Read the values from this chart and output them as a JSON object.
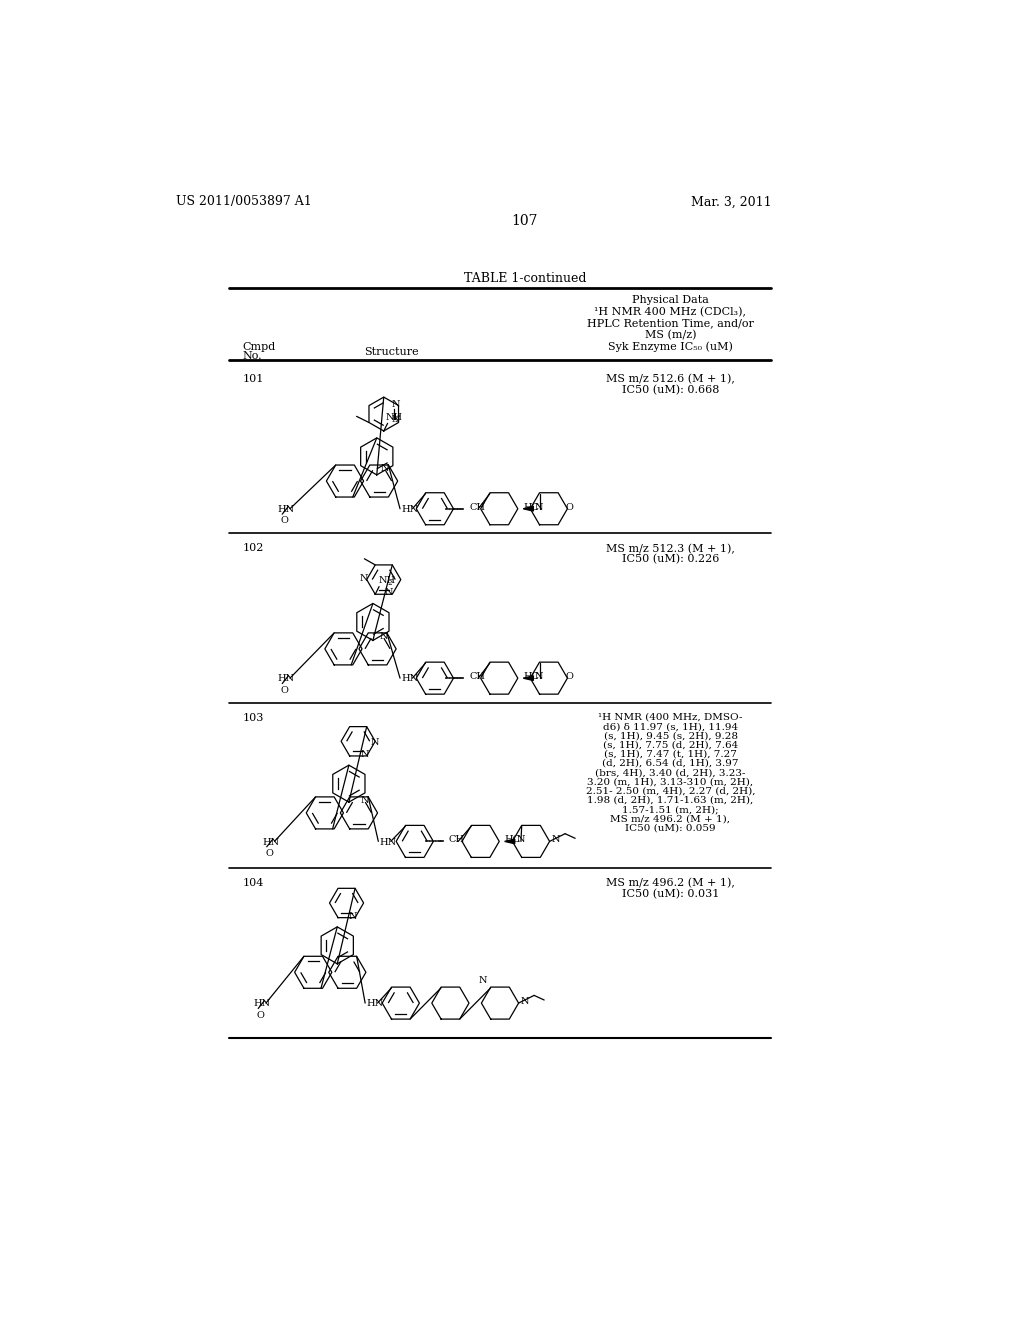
{
  "page_number": "107",
  "patent_number": "US 2011/0053897 A1",
  "patent_date": "Mar. 3, 2011",
  "table_title": "TABLE 1-continued",
  "header_col4_line1": "Physical Data",
  "header_col4_line2": "¹H NMR 400 MHz (CDCl₃),",
  "header_col4_line3": "HPLC Retention Time, and/or",
  "header_col4_line4": "MS (m/z)",
  "header_col4_line5": "Syk Enzyme IC₅₀ (uM)",
  "cmpd_label": "Cmpd",
  "no_label": "No.",
  "structure_label": "Structure",
  "compounds": [
    {
      "number": "101",
      "data_line1": "MS m/z 512.6 (M + 1),",
      "data_line2": "IC50 (uM): 0.668"
    },
    {
      "number": "102",
      "data_line1": "MS m/z 512.3 (M + 1),",
      "data_line2": "IC50 (uM): 0.226"
    },
    {
      "number": "103",
      "data_lines": [
        "¹H NMR (400 MHz, DMSO-",
        "d6) δ 11.97 (s, 1H), 11.94",
        "(s, 1H), 9.45 (s, 2H), 9.28",
        "(s, 1H), 7.75 (d, 2H), 7.64",
        "(s, 1H), 7.47 (t, 1H), 7.27",
        "(d, 2H), 6.54 (d, 1H), 3.97",
        "(brs, 4H), 3.40 (d, 2H), 3.23-",
        "3.20 (m, 1H), 3.13-310 (m, 2H),",
        "2.51- 2.50 (m, 4H), 2.27 (d, 2H),",
        "1.98 (d, 2H), 1.71-1.63 (m, 2H),",
        "1.57-1.51 (m, 2H);",
        "MS m/z 496.2 (M + 1),",
        "IC50 (uM): 0.059"
      ]
    },
    {
      "number": "104",
      "data_line1": "MS m/z 496.2 (M + 1),",
      "data_line2": "IC50 (uM): 0.031"
    }
  ],
  "bg_color": "#ffffff",
  "text_color": "#000000",
  "line_color": "#000000"
}
